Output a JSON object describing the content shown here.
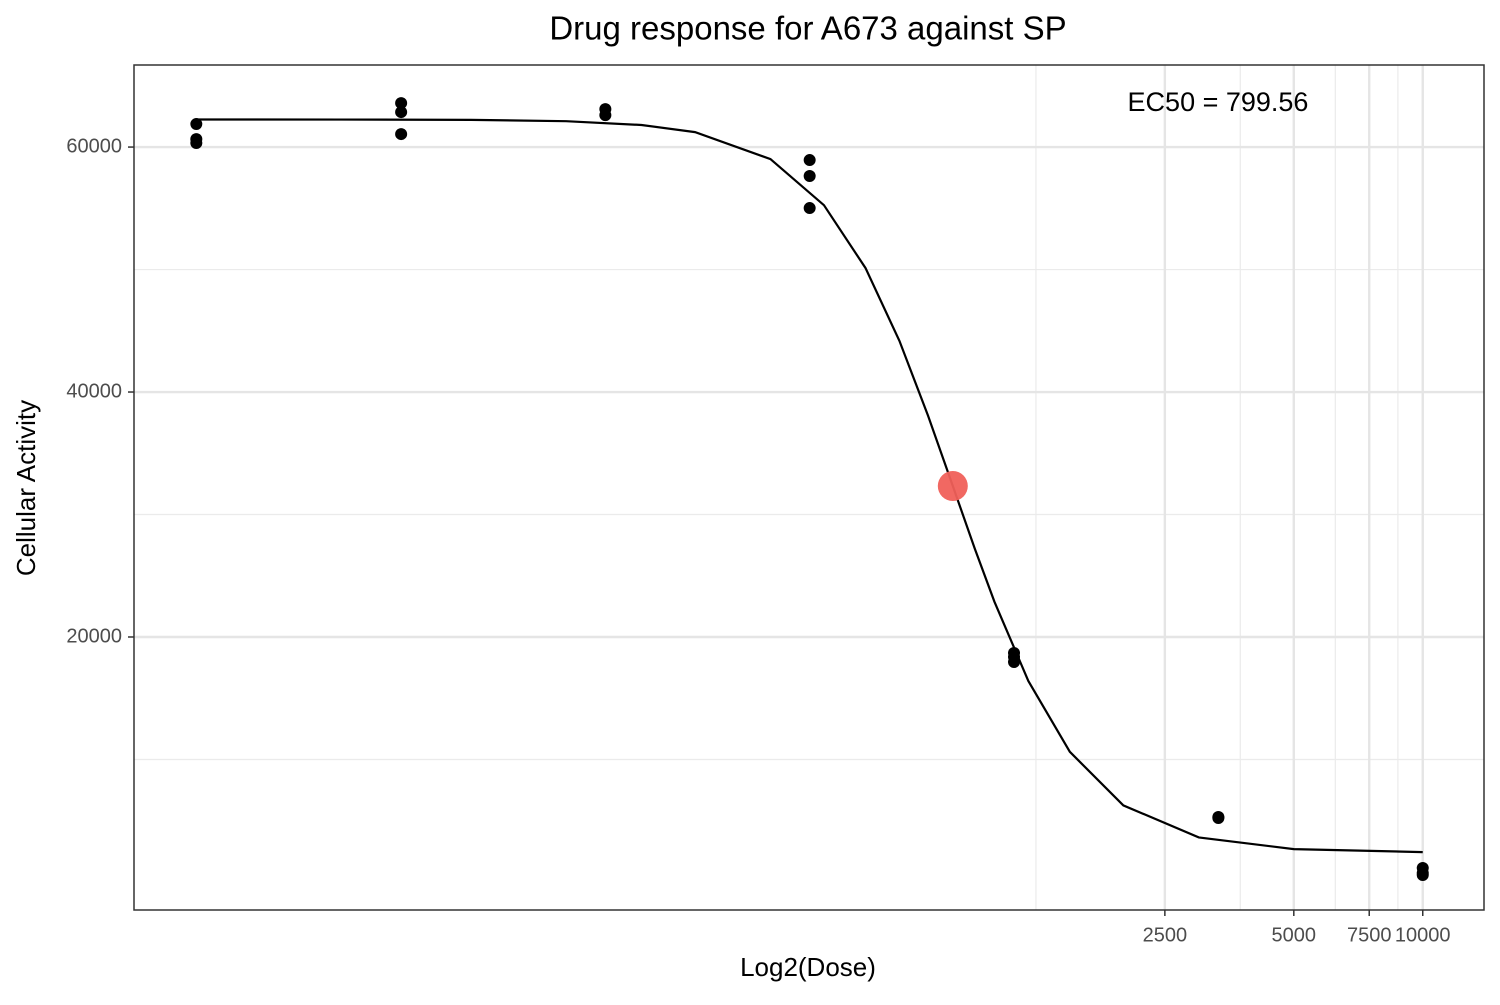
{
  "chart_data": {
    "type": "scatter",
    "title": "Drug response for A673 against SP",
    "x_label": "Log2(Dose)",
    "y_label": "Cellular Activity",
    "annotation": "EC50 = 799.56",
    "x_scale": "log2",
    "xlim": [
      9.8,
      13900
    ],
    "xticks": [
      2500,
      5000,
      7500,
      10000
    ],
    "x_minor_ticks": [
      1250,
      3750,
      6250,
      8750
    ],
    "ylim": [
      -2290,
      66700
    ],
    "yticks": [
      20000,
      40000,
      60000
    ],
    "y_minor_ticks": [
      10000,
      30000,
      50000
    ],
    "grid": true,
    "point_color": "#000000",
    "x": [
      13.7,
      13.7,
      13.7,
      41.2,
      41.2,
      41.2,
      123.5,
      123.5,
      370.4,
      370.4,
      370.4,
      1111.1,
      1111.1,
      1111.1,
      3333.3,
      3333.3,
      10000,
      10000,
      10000
    ],
    "y": [
      61878,
      60653,
      60327,
      63592,
      62857,
      61061,
      63102,
      62612,
      58939,
      57633,
      55020,
      18694,
      18367,
      17959,
      5224,
      5300,
      1143,
      735,
      571
    ],
    "curve": {
      "color": "#000000",
      "x": [
        13.7,
        30,
        60,
        100,
        150,
        200,
        300,
        400,
        500,
        600,
        700,
        800,
        900,
        1000,
        1200,
        1500,
        2000,
        3000,
        5000,
        10000
      ],
      "y": [
        62250,
        62246,
        62219,
        62112,
        61802,
        61221,
        59020,
        55253,
        50129,
        44183,
        38063,
        32304,
        27205,
        22884,
        16410,
        10623,
        6251,
        3634,
        2682,
        2437
      ]
    },
    "ec50_point": {
      "x": 799.56,
      "y": 32327,
      "color": "#f0605a"
    }
  }
}
